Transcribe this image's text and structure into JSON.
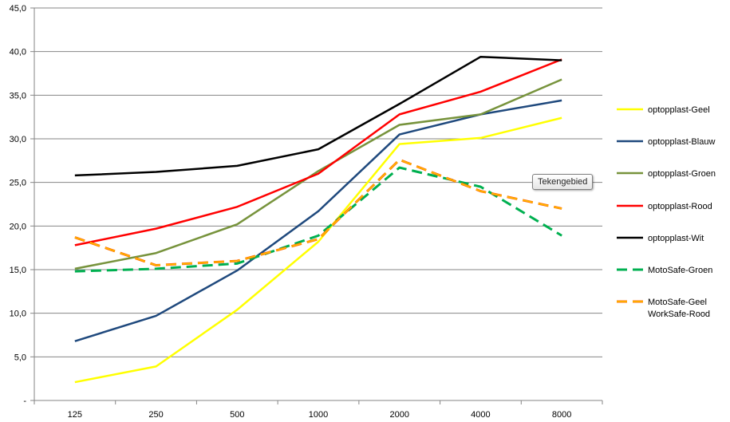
{
  "chart_data": {
    "type": "line",
    "categories": [
      "125",
      "250",
      "500",
      "1000",
      "2000",
      "4000",
      "8000"
    ],
    "ylim": [
      0,
      45
    ],
    "yticks": [
      "-",
      "5,0",
      "10,0",
      "15,0",
      "20,0",
      "25,0",
      "30,0",
      "35,0",
      "40,0",
      "45,0"
    ],
    "grid": true,
    "legend_position": "right",
    "series": [
      {
        "name": "optopplast-Geel",
        "color": "#ffff00",
        "dash": false,
        "values": [
          2.1,
          3.9,
          10.4,
          18.2,
          29.4,
          30.1,
          32.4
        ]
      },
      {
        "name": "optopplast-Blauw",
        "color": "#1f497d",
        "dash": false,
        "values": [
          6.8,
          9.7,
          14.9,
          21.7,
          30.5,
          32.8,
          34.4
        ]
      },
      {
        "name": "optopplast-Groen",
        "color": "#77933c",
        "dash": false,
        "values": [
          15.1,
          16.9,
          20.2,
          26.3,
          31.6,
          32.8,
          36.8
        ]
      },
      {
        "name": "optopplast-Rood",
        "color": "#ff0000",
        "dash": false,
        "values": [
          17.8,
          19.7,
          22.2,
          26.0,
          32.8,
          35.4,
          39.1
        ]
      },
      {
        "name": "optopplast-Wit",
        "color": "#000000",
        "dash": false,
        "values": [
          25.8,
          26.2,
          26.9,
          28.8,
          34.0,
          39.4,
          39.0
        ]
      },
      {
        "name": "MotoSafe-Groen",
        "color": "#00b050",
        "dash": true,
        "values": [
          14.8,
          15.1,
          15.7,
          18.9,
          26.7,
          24.5,
          18.9
        ]
      },
      {
        "name": "MotoSafe-Geel WorkSafe-Rood",
        "color": "#ff6600",
        "dash": true,
        "overlay": "#ffc000",
        "values": [
          18.7,
          15.5,
          16.0,
          18.5,
          27.6,
          24.0,
          22.0
        ]
      }
    ],
    "legend_lines": [
      [
        "optopplast-Geel"
      ],
      [
        "optopplast-Blauw"
      ],
      [
        "optopplast-Groen"
      ],
      [
        "optopplast-Rood"
      ],
      [
        "optopplast-Wit"
      ],
      [
        "MotoSafe-Groen"
      ],
      [
        "MotoSafe-Geel",
        "WorkSafe-Rood"
      ]
    ]
  },
  "tooltip": "Tekengebied"
}
